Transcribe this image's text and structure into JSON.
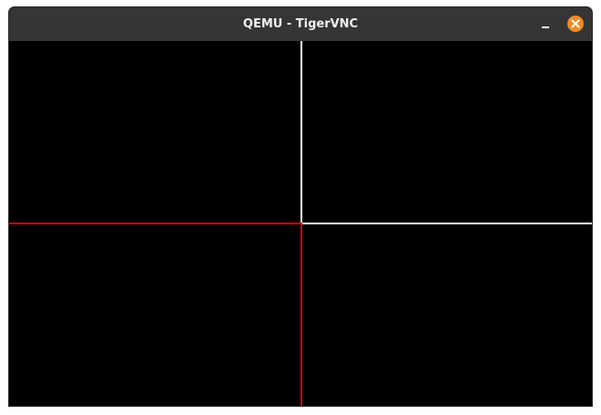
{
  "window": {
    "title": "QEMU - TigerVNC",
    "minimize_icon": "minimize-icon",
    "close_icon": "close-icon"
  },
  "colors": {
    "titlebar": "#353535",
    "title_text": "#f0f0f0",
    "close_button": "#f08a24",
    "screen_background": "#000000",
    "crosshair_upper_right": "#ffffff",
    "crosshair_lower_left": "#e00000"
  }
}
